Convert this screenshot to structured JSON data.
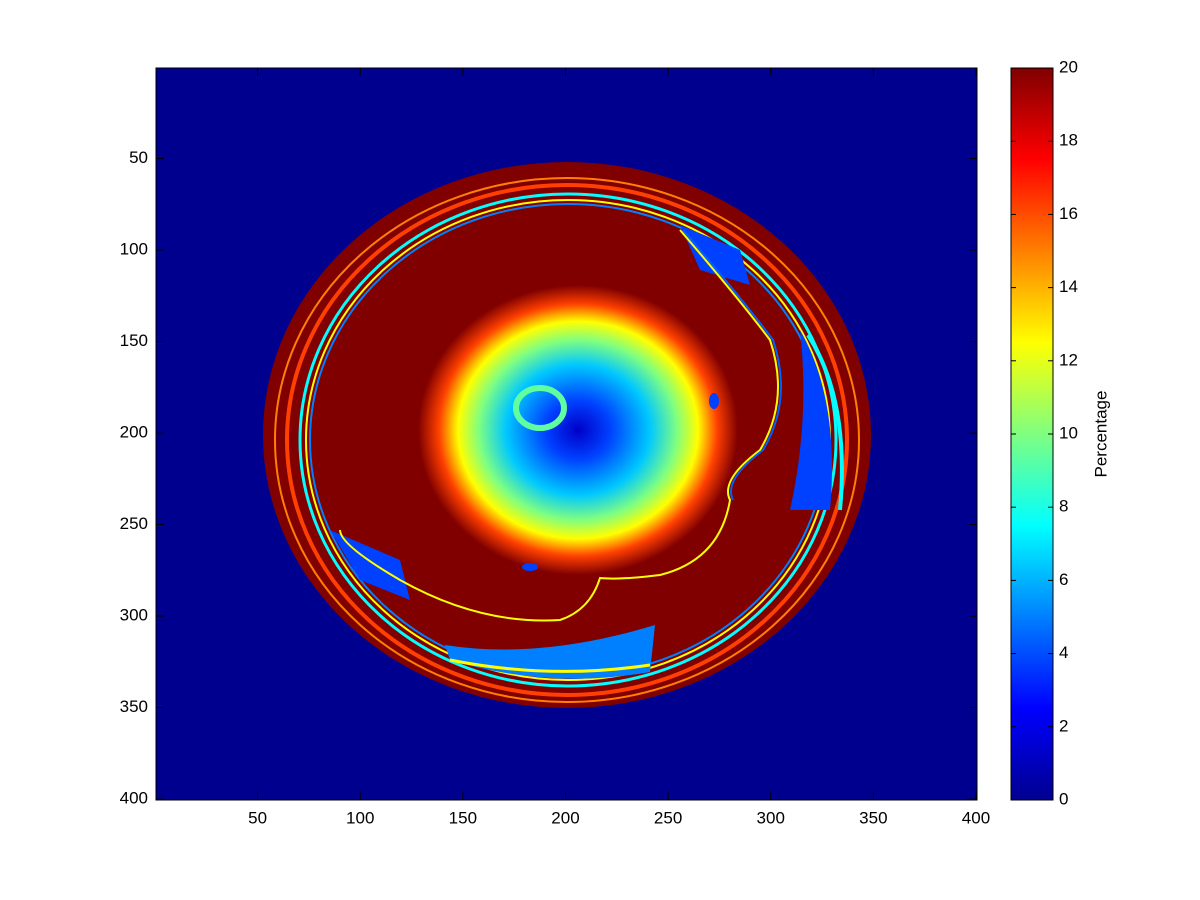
{
  "chart_data": {
    "type": "heatmap",
    "colormap": "jet",
    "xlim": [
      0.5,
      400.5
    ],
    "ylim": [
      0.5,
      400.5
    ],
    "y_reversed": true,
    "xticks": [
      50,
      100,
      150,
      200,
      250,
      300,
      350,
      400
    ],
    "yticks": [
      50,
      100,
      150,
      200,
      250,
      300,
      350,
      400
    ],
    "colorbar": {
      "label": "Percentage",
      "clim": [
        0,
        20
      ],
      "ticks": [
        0,
        2,
        4,
        6,
        8,
        10,
        12,
        14,
        16,
        18,
        20
      ]
    }
  }
}
